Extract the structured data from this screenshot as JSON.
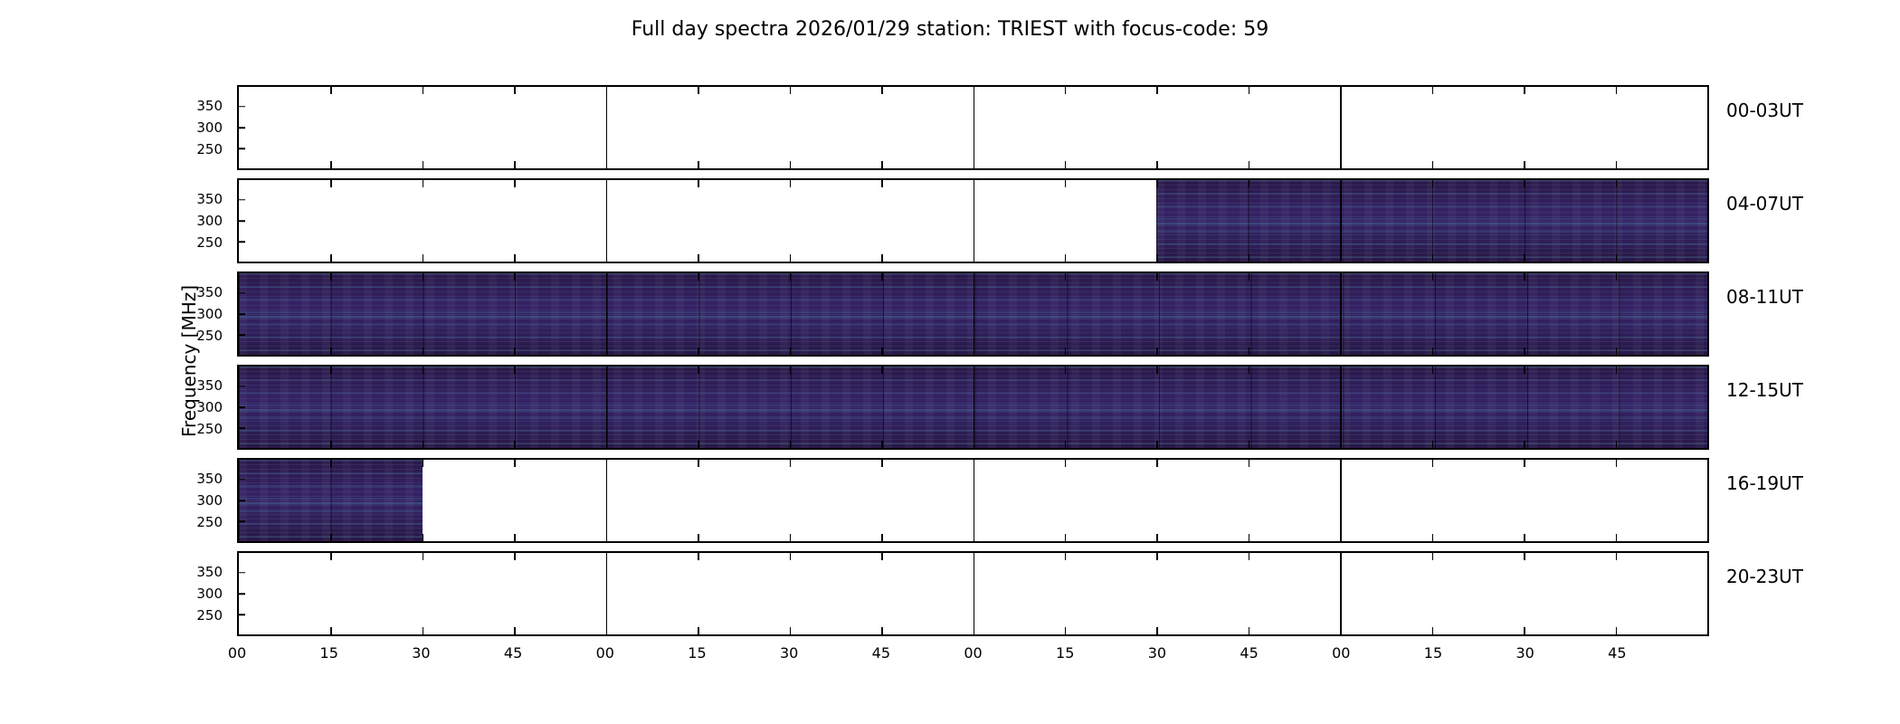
{
  "title": "Full day spectra 2026/01/29 station: TRIEST with focus-code: 59",
  "y_axis": {
    "label": "Frequency [MHz]",
    "ticks": [
      "350",
      "300",
      "250"
    ]
  },
  "x_axis": {
    "ticks": [
      "00",
      "15",
      "30",
      "45",
      "00",
      "15",
      "30",
      "45",
      "00",
      "15",
      "30",
      "45",
      "00",
      "15",
      "30",
      "45"
    ],
    "units": "minutes"
  },
  "panels": [
    {
      "label": "00-03UT",
      "coverage": []
    },
    {
      "label": "04-07UT",
      "coverage": [
        {
          "start": 0.625,
          "end": 1.0
        }
      ]
    },
    {
      "label": "08-11UT",
      "coverage": [
        {
          "start": 0.0,
          "end": 1.0
        }
      ]
    },
    {
      "label": "12-15UT",
      "coverage": [
        {
          "start": 0.0,
          "end": 1.0
        }
      ]
    },
    {
      "label": "16-19UT",
      "coverage": [
        {
          "start": 0.0,
          "end": 0.125
        }
      ]
    },
    {
      "label": "20-23UT",
      "coverage": []
    }
  ],
  "colors": {
    "no_data_background": "#ffffff",
    "spectrogram_base": "#32205c",
    "spectrogram_streaks": "#4aa0b4",
    "axes": "#000000"
  },
  "chart_data": {
    "type": "heatmap",
    "subtype": "radio-spectrogram-grid",
    "title": "Full day spectra 2026/01/29 station: TRIEST with focus-code: 59",
    "station": "TRIEST",
    "date": "2026/01/29",
    "focus_code": "59",
    "rows": 6,
    "hours_per_panel": 4,
    "x_axis": {
      "tick_labels": [
        "00",
        "15",
        "30",
        "45",
        "00",
        "15",
        "30",
        "45",
        "00",
        "15",
        "30",
        "45",
        "00",
        "15",
        "30",
        "45"
      ],
      "units": "minutes within each hour",
      "grid": "hour boundaries marked with full-height lines, 15-min ticks top and bottom"
    },
    "y_axis": {
      "label": "Frequency [MHz]",
      "tick_labels": [
        350,
        300,
        250
      ],
      "orientation": "frequency decreases downward"
    },
    "legend": "none",
    "colorbar": "none",
    "panels": [
      {
        "time_range": "00-03UT",
        "data_coverage_fraction": [],
        "approx_ut_with_data": "none"
      },
      {
        "time_range": "04-07UT",
        "data_coverage_fraction": [
          {
            "start": 0.625,
            "end": 1.0
          }
        ],
        "approx_ut_with_data": "06:30-08:00"
      },
      {
        "time_range": "08-11UT",
        "data_coverage_fraction": [
          {
            "start": 0.0,
            "end": 1.0
          }
        ],
        "approx_ut_with_data": "08:00-12:00"
      },
      {
        "time_range": "12-15UT",
        "data_coverage_fraction": [
          {
            "start": 0.0,
            "end": 1.0
          }
        ],
        "approx_ut_with_data": "12:00-16:00"
      },
      {
        "time_range": "16-19UT",
        "data_coverage_fraction": [
          {
            "start": 0.0,
            "end": 0.125
          }
        ],
        "approx_ut_with_data": "16:00-16:30"
      },
      {
        "time_range": "20-23UT",
        "data_coverage_fraction": [],
        "approx_ut_with_data": "none"
      }
    ],
    "appearance": "dark indigo/purple spectrogram fill with faint horizontal teal streaks and thin black vertical segment separators every 15 minutes; empty intervals are white"
  }
}
